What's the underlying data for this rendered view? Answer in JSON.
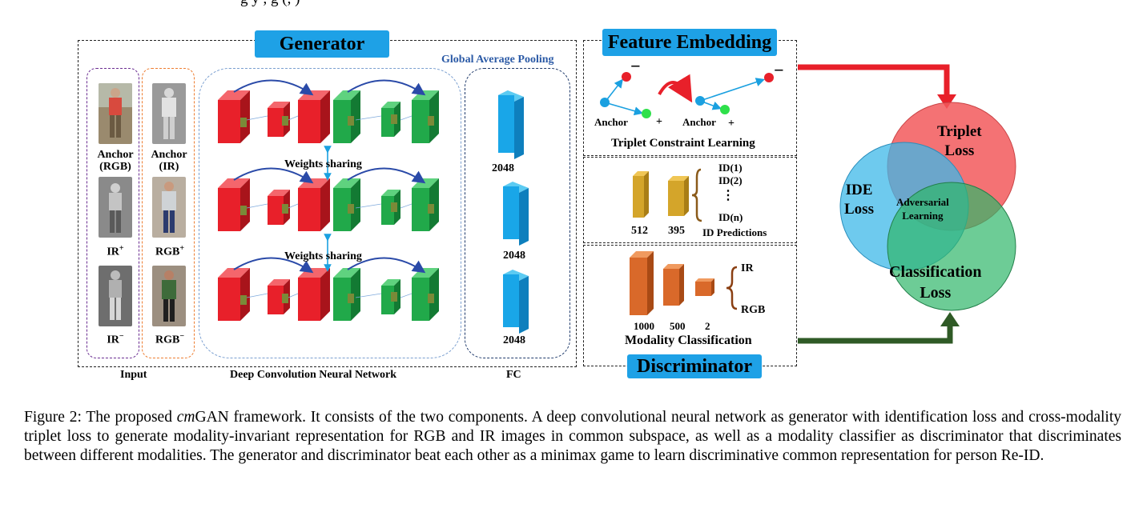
{
  "top_fragment": "Figure 2: The proposed cmGAN framework...",
  "sections": {
    "generator": "Generator",
    "feature_embedding": "Feature Embedding",
    "discriminator": "Discriminator"
  },
  "generator_labels": {
    "gap": "Global Average Pooling",
    "weights_sharing": "Weights sharing",
    "input": "Input",
    "dcnn": "Deep Convolution Neural Network",
    "fc": "FC",
    "fc_dims": [
      "2048",
      "2048",
      "2048"
    ]
  },
  "input_labels": {
    "anchor_rgb_1": "Anchor",
    "anchor_rgb_2": "(RGB)",
    "anchor_ir_1": "Anchor",
    "anchor_ir_2": "(IR)",
    "ir_plus": "IR",
    "rgb_plus": "RGB",
    "ir_minus": "IR",
    "rgb_minus": "RGB",
    "plus": "+",
    "minus": "−"
  },
  "triplet": {
    "anchor1": "Anchor",
    "anchor2": "Anchor",
    "plus": "+",
    "minus": "−",
    "title": "Triplet Constraint Learning"
  },
  "id_pred": {
    "dims": [
      "512",
      "395"
    ],
    "ids": [
      "ID(1)",
      "ID(2)",
      "⋮",
      "ID(n)"
    ],
    "title": "ID Predictions"
  },
  "modality": {
    "dims": [
      "1000",
      "500",
      "2"
    ],
    "outputs": [
      "IR",
      "RGB"
    ],
    "title": "Modality Classification"
  },
  "venn": {
    "triplet_1": "Triplet",
    "triplet_2": "Loss",
    "ide_1": "IDE",
    "ide_2": "Loss",
    "adv_1": "Adversarial",
    "adv_2": "Learning",
    "cls_1": "Classification",
    "cls_2": "Loss"
  },
  "caption": {
    "prefix": "Figure 2: The proposed ",
    "italic": "cm",
    "rest": "GAN framework. It consists of the two components. A deep convolutional neural network as generator with identification loss and cross-modality triplet loss to generate modality-invariant representation for RGB and IR images in common subspace, as well as a modality classifier as discriminator that discriminates between different modalities. The generator and discriminator beat each other as a minimax game to learn discriminative common representation for person Re-ID."
  },
  "colors": {
    "tag_blue": "#1ea1e6",
    "conv_red": "#e8202a",
    "conv_green": "#21a94a",
    "fc_blue": "#19a6e8",
    "id_gold": "#d4a52a",
    "mod_orange": "#d9692a",
    "triplet_circle": "#f2595c",
    "ide_circle": "#3db8e8",
    "cls_circle": "#2fb66a",
    "arrow_red": "#e8202a",
    "arrow_green": "#2f5a26"
  }
}
